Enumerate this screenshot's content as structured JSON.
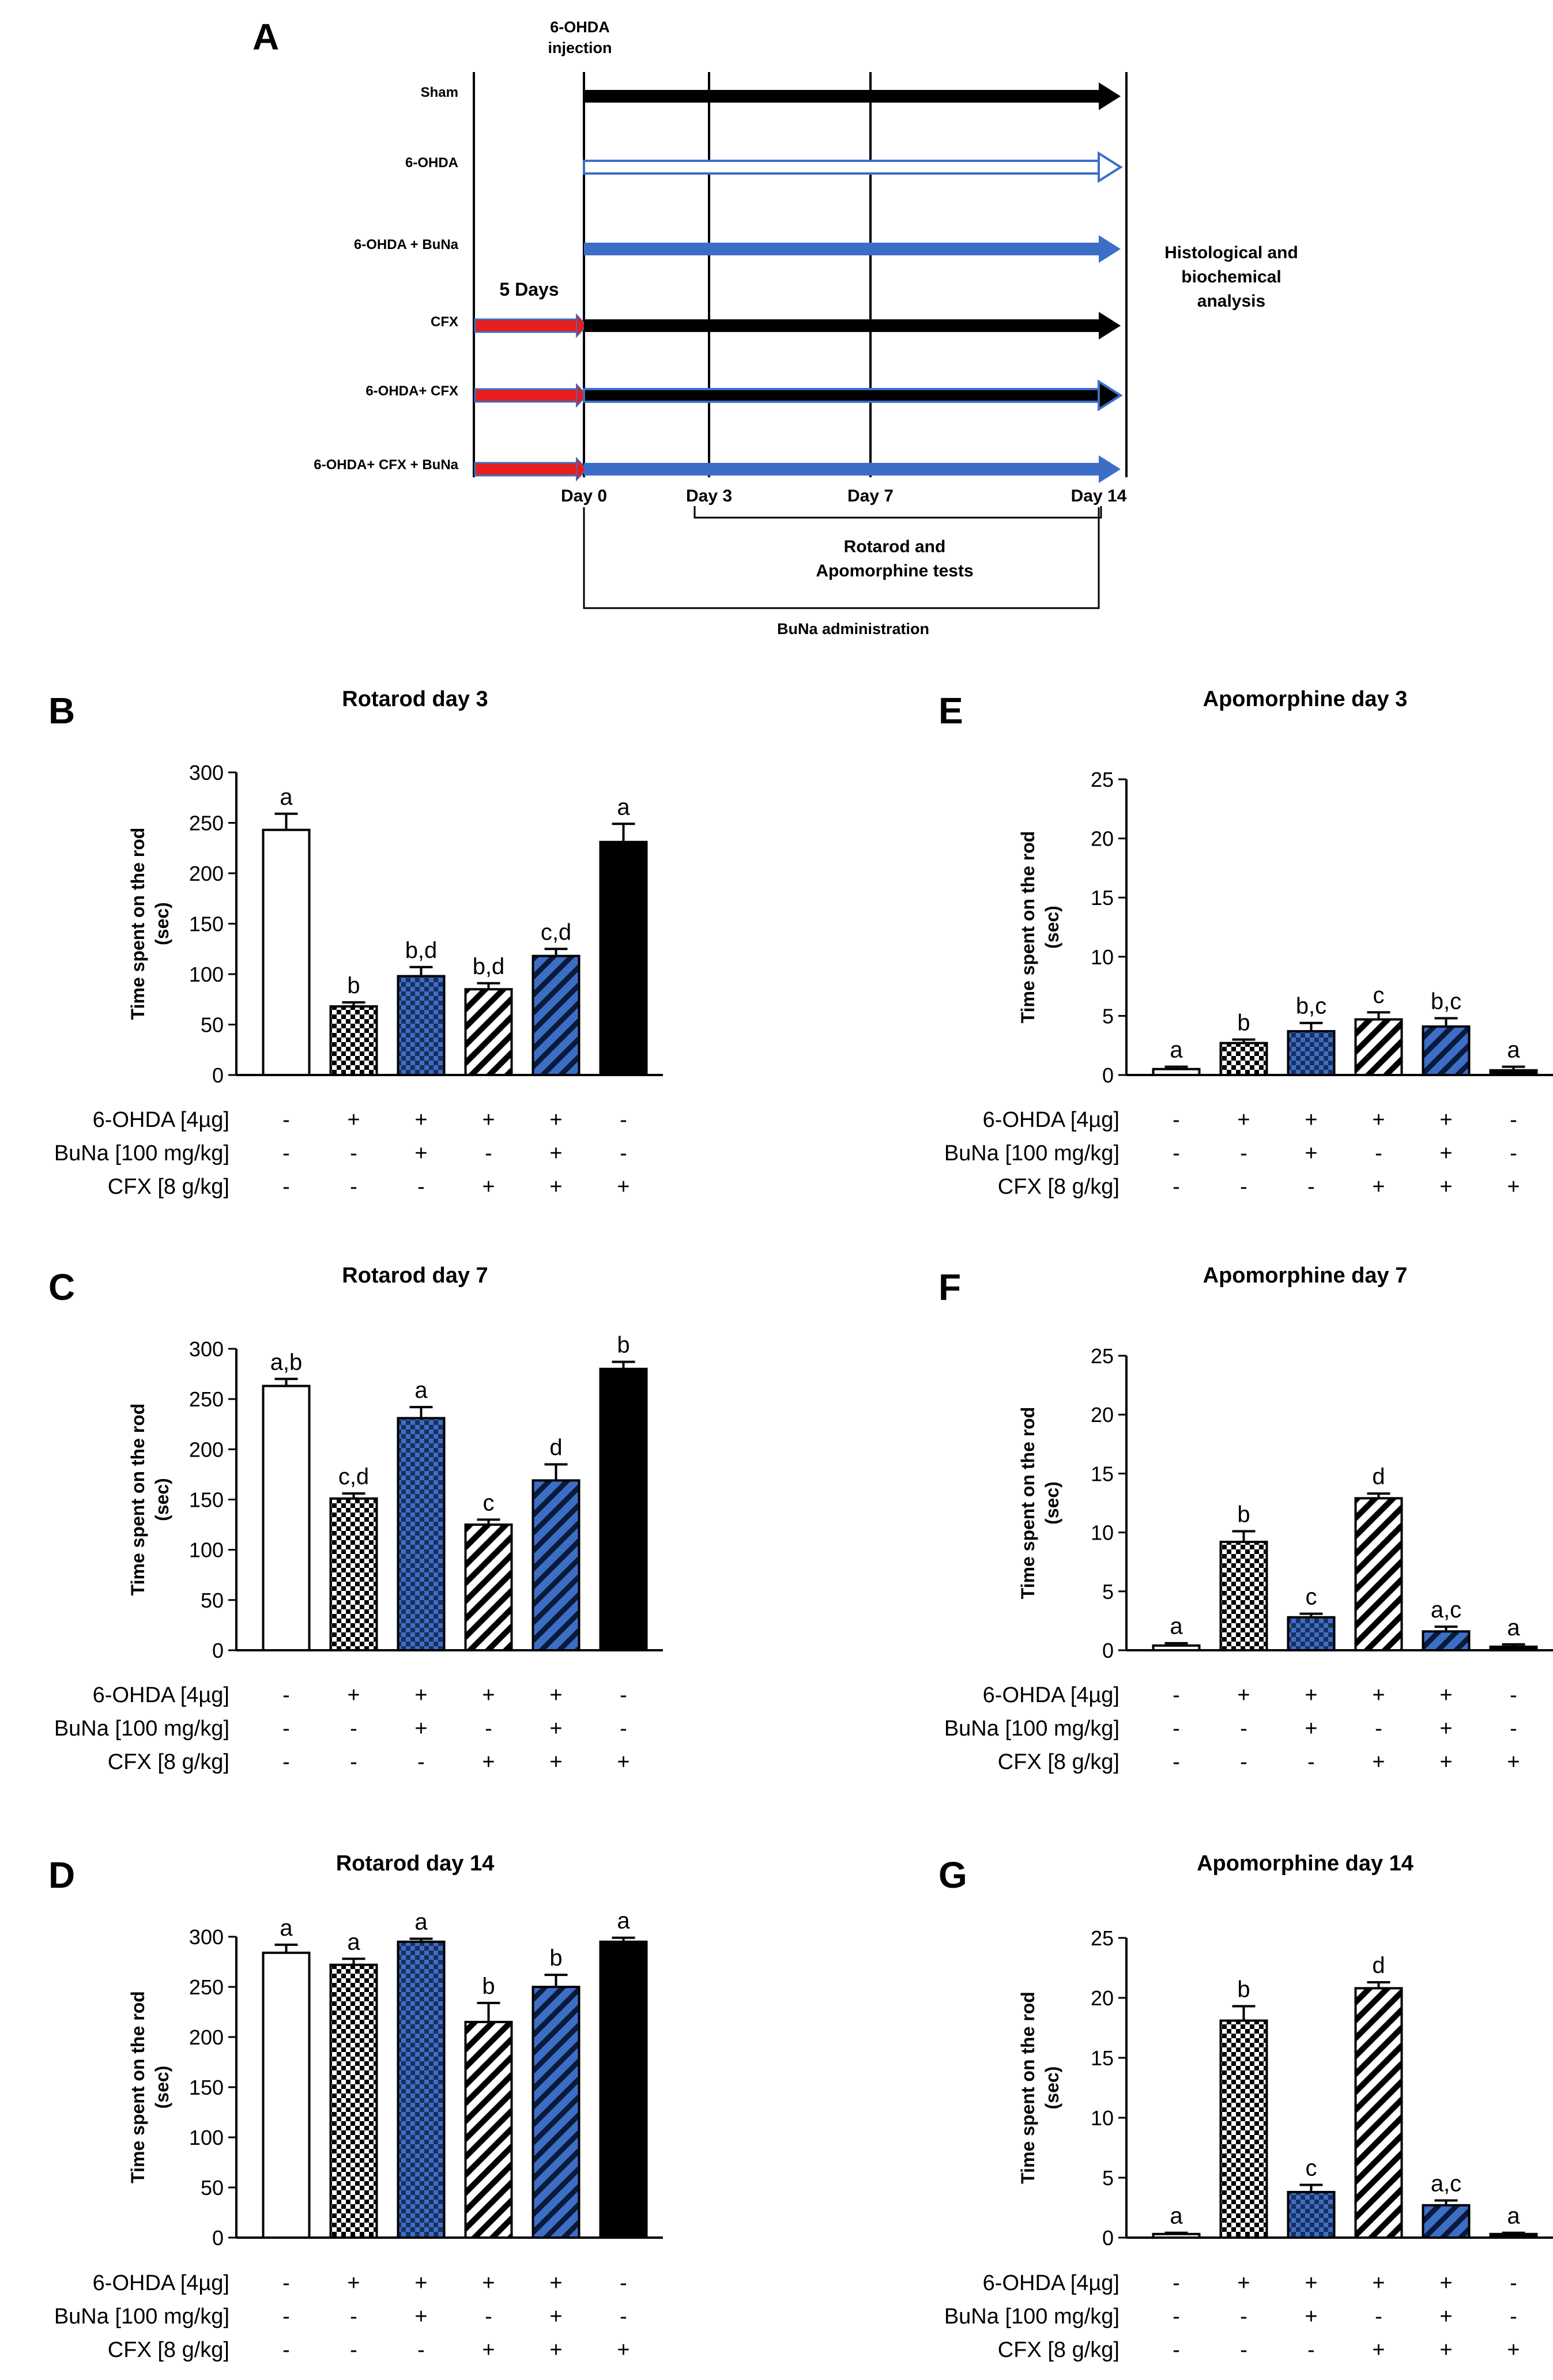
{
  "colors": {
    "blue": "#3d6ec6",
    "red": "#e61e1e",
    "black": "#000000",
    "white": "#ffffff"
  },
  "panel_a": {
    "letter": "A",
    "injection_label": [
      "6-OHDA",
      "injection"
    ],
    "five_days": "5 Days",
    "groups": [
      "Sham",
      "6-OHDA",
      "6-OHDA + BuNa",
      "CFX",
      "6-OHDA+ CFX",
      "6-OHDA+ CFX + BuNa"
    ],
    "days": [
      "Day 0",
      "Day 3",
      "Day 7",
      "Day 14"
    ],
    "tests_label": [
      "Rotarod and",
      "Apomorphine tests"
    ],
    "buna_label": "BuNa administration",
    "analysis_label": [
      "Histological and",
      "biochemical",
      "analysis"
    ]
  },
  "conditions": {
    "labels": [
      "6-OHDA [4µg]",
      "BuNa [100 mg/kg]",
      "CFX [8 g/kg]"
    ],
    "rows": [
      [
        "-",
        "+",
        "+",
        "+",
        "+",
        "-"
      ],
      [
        "-",
        "-",
        "+",
        "-",
        "+",
        "-"
      ],
      [
        "-",
        "-",
        "-",
        "+",
        "+",
        "+"
      ]
    ]
  },
  "chart_data": [
    {
      "panel": "B",
      "type": "bar",
      "title": "Rotarod day 3",
      "ylabel": "Time spent on the rod (sec)",
      "ylim": [
        0,
        300
      ],
      "yticks": [
        0,
        50,
        100,
        150,
        200,
        250,
        300
      ],
      "values": [
        243,
        68,
        98,
        85,
        118,
        231
      ],
      "errors": [
        16,
        4,
        9,
        6,
        7,
        18
      ],
      "letters": [
        "a",
        "b",
        "b,d",
        "b,d",
        "c,d",
        "a"
      ]
    },
    {
      "panel": "C",
      "type": "bar",
      "title": "Rotarod day 7",
      "ylabel": "Time spent on the rod (sec)",
      "ylim": [
        0,
        300
      ],
      "yticks": [
        0,
        50,
        100,
        150,
        200,
        250,
        300
      ],
      "values": [
        263,
        151,
        231,
        125,
        169,
        280
      ],
      "errors": [
        7,
        5,
        11,
        5,
        16,
        7
      ],
      "letters": [
        "a,b",
        "c,d",
        "a",
        "c",
        "d",
        "b"
      ]
    },
    {
      "panel": "D",
      "type": "bar",
      "title": "Rotarod day 14",
      "ylabel": "Time spent on the rod (sec)",
      "ylim": [
        0,
        300
      ],
      "yticks": [
        0,
        50,
        100,
        150,
        200,
        250,
        300
      ],
      "values": [
        284,
        272,
        295,
        215,
        250,
        295
      ],
      "errors": [
        8,
        6,
        3,
        19,
        12,
        4
      ],
      "letters": [
        "a",
        "a",
        "a",
        "b",
        "b",
        "a"
      ]
    },
    {
      "panel": "E",
      "type": "bar",
      "title": "Apomorphine day 3",
      "ylabel": "Time spent on the rod (sec)",
      "ylim": [
        0,
        25
      ],
      "yticks": [
        0,
        5,
        10,
        15,
        20,
        25
      ],
      "values": [
        0.5,
        2.7,
        3.7,
        4.7,
        4.1,
        0.4
      ],
      "errors": [
        0.2,
        0.3,
        0.7,
        0.6,
        0.7,
        0.3
      ],
      "letters": [
        "a",
        "b",
        "b,c",
        "c",
        "b,c",
        "a"
      ]
    },
    {
      "panel": "F",
      "type": "bar",
      "title": "Apomorphine day 7",
      "ylabel": "Time spent on the rod (sec)",
      "ylim": [
        0,
        25
      ],
      "yticks": [
        0,
        5,
        10,
        15,
        20,
        25
      ],
      "values": [
        0.4,
        9.2,
        2.8,
        12.9,
        1.6,
        0.3
      ],
      "errors": [
        0.2,
        0.9,
        0.3,
        0.4,
        0.4,
        0.2
      ],
      "letters": [
        "a",
        "b",
        "c",
        "d",
        "a,c",
        "a"
      ]
    },
    {
      "panel": "G",
      "type": "bar",
      "title": "Apomorphine day 14",
      "ylabel": "Time spent on the rod (sec)",
      "ylim": [
        0,
        25
      ],
      "yticks": [
        0,
        5,
        10,
        15,
        20,
        25
      ],
      "values": [
        0.3,
        18.1,
        3.8,
        20.8,
        2.7,
        0.3
      ],
      "errors": [
        0.1,
        1.2,
        0.6,
        0.5,
        0.4,
        0.1
      ],
      "letters": [
        "a",
        "b",
        "c",
        "d",
        "a,c",
        "a"
      ]
    }
  ]
}
